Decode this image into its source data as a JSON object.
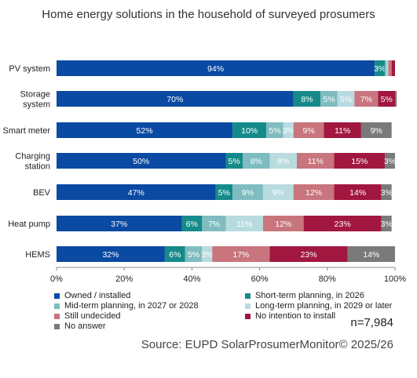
{
  "title": "Home energy solutions in the household of surveyed prosumers",
  "note": "n=7,984",
  "source": "Source: EUPD SolarProsumerMonitor©  2025/26",
  "chart_data": {
    "type": "bar",
    "orientation": "horizontal",
    "stacked": true,
    "title": "Home energy solutions in the household of surveyed prosumers",
    "categories": [
      "PV system",
      "Storage\nsystem",
      "Smart meter",
      "Charging\nstation",
      "BEV",
      "Heat pump",
      "HEMS"
    ],
    "series": [
      {
        "name": "Owned / installed",
        "color": "#0a4aa3",
        "values": [
          94,
          70,
          52,
          50,
          47,
          37,
          32
        ]
      },
      {
        "name": "Short-term planning, in 2026",
        "color": "#168a8a",
        "values": [
          3,
          8,
          10,
          5,
          5,
          6,
          6
        ]
      },
      {
        "name": "Mid-term planning, in 2027 or 2028",
        "color": "#7fbcc0",
        "values": [
          0.5,
          5,
          5,
          8,
          9,
          7,
          5
        ]
      },
      {
        "name": "Long-term planning, in 2029 or later",
        "color": "#b8dbdf",
        "values": [
          0.5,
          5,
          3,
          8,
          9,
          11,
          3
        ]
      },
      {
        "name": "Still undecided",
        "color": "#c8757d",
        "values": [
          1,
          7,
          9,
          11,
          12,
          12,
          17
        ]
      },
      {
        "name": "No intention to install",
        "color": "#a1173f",
        "values": [
          1,
          5,
          11,
          15,
          14,
          23,
          23
        ]
      },
      {
        "name": "No answer",
        "color": "#7a7a7a",
        "values": [
          0,
          0.5,
          9,
          3,
          3,
          3,
          14
        ]
      }
    ],
    "data_labels": [
      [
        "94%",
        "3%",
        "",
        "",
        "",
        "",
        ""
      ],
      [
        "70%",
        "8%",
        "5%",
        "5%",
        "7%",
        "5%",
        ""
      ],
      [
        "52%",
        "10%",
        "5%",
        "3%",
        "9%",
        "11%",
        "9%"
      ],
      [
        "50%",
        "5%",
        "8%",
        "8%",
        "11%",
        "15%",
        "3%"
      ],
      [
        "47%",
        "5%",
        "9%",
        "9%",
        "12%",
        "14%",
        "3%"
      ],
      [
        "37%",
        "6%",
        "7%",
        "11%",
        "12%",
        "23%",
        "3%"
      ],
      [
        "32%",
        "6%",
        "5%",
        "3%",
        "17%",
        "23%",
        "14%"
      ]
    ],
    "xlim": [
      0,
      100
    ],
    "xticks": [
      "0%",
      "20%",
      "40%",
      "60%",
      "80%",
      "100%"
    ],
    "xlabel": "",
    "ylabel": "",
    "grid": false,
    "legend_position": "bottom"
  }
}
